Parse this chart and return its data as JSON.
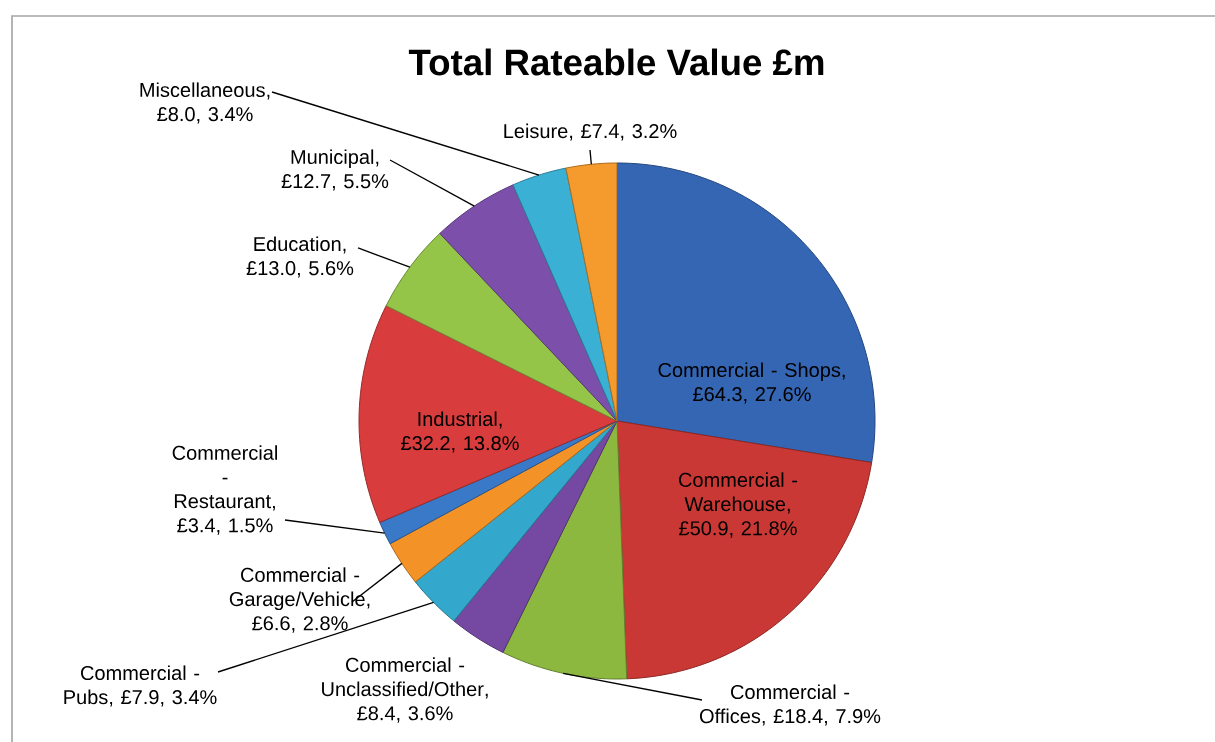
{
  "chart_data": {
    "type": "pie",
    "title": "Total Rateable Value £m",
    "categories": [
      "Commercial - Shops",
      "Commercial - Warehouse",
      "Commercial - Offices",
      "Commercial - Unclassified/Other",
      "Commercial - Pubs",
      "Commercial - Garage/Vehicle",
      "Commercial - Restaurant",
      "Industrial",
      "Education",
      "Municipal",
      "Miscellaneous",
      "Leisure"
    ],
    "values": [
      64.3,
      50.9,
      18.4,
      8.4,
      7.9,
      6.6,
      3.4,
      32.2,
      13.0,
      12.7,
      8.0,
      7.4
    ],
    "value_labels": [
      ", £64.3, 27.6%",
      ", £50.9, 21.8%",
      ", £18.4, 7.9%",
      ", £8.4, 3.6%",
      ", £7.9, 3.4%",
      ", £6.6, 2.8%",
      ", £3.4, 1.5%",
      ", £32.2, 13.8%",
      ", £13.0, 5.6%",
      ", £12.7, 5.5%",
      ", £8.0, 3.4%",
      ", £7.4, 3.2%"
    ],
    "colors": [
      "#3466b4",
      "#c93834",
      "#8cb840",
      "#7548a2",
      "#33a8cc",
      "#f39227",
      "#3a78c8",
      "#d93c3c",
      "#95c548",
      "#7c50aa",
      "#3ab0d4",
      "#f59a2c"
    ]
  }
}
